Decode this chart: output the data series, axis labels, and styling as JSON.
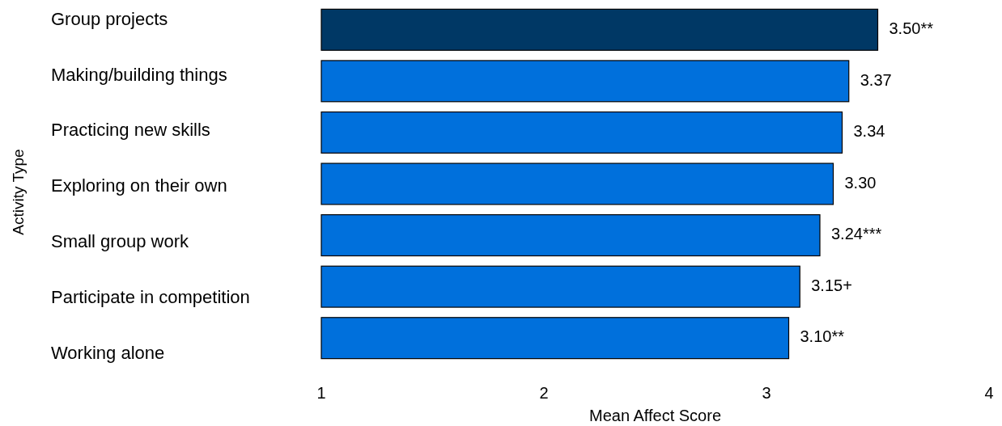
{
  "chart_data": {
    "type": "bar",
    "orientation": "horizontal",
    "xlabel": "Mean Affect Score",
    "ylabel": "Activity Type",
    "categories": [
      "Group projects",
      "Making/building things",
      "Practicing new skills",
      "Exploring on their own",
      "Small group work",
      "Participate in competition",
      "Working alone"
    ],
    "values": [
      3.5,
      3.37,
      3.34,
      3.3,
      3.24,
      3.15,
      3.1
    ],
    "colors": [
      "#003865",
      "#0070dc",
      "#0070dc",
      "#0070dc",
      "#0070dc",
      "#0070dc",
      "#0070dc"
    ],
    "value_labels": [
      "3.50**",
      "3.37",
      "3.34",
      "3.30",
      "3.24***",
      "3.15+",
      "3.10**"
    ],
    "xlim": [
      1,
      4
    ],
    "xticks": [
      1,
      2,
      3,
      4
    ],
    "grid": false
  }
}
